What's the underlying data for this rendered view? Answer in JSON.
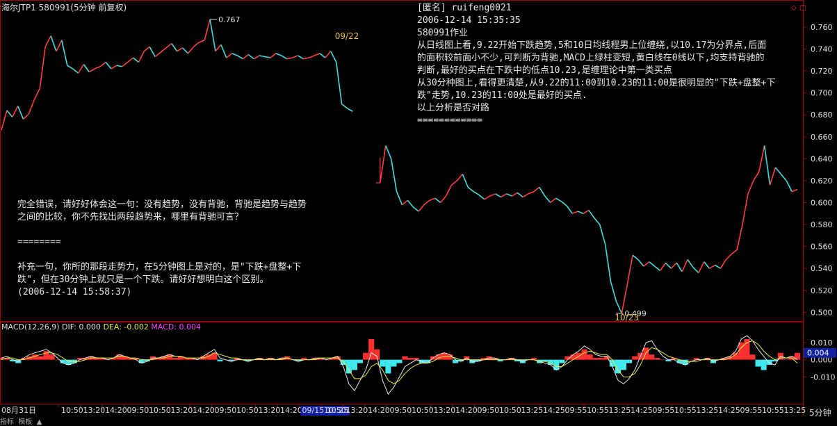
{
  "window": {
    "title": "海尔JTP1 580991(5分钟 前复权)",
    "timeframe_label": "5分钟",
    "bottom_status": "指标  模板  ▲"
  },
  "post": {
    "lines": [
      "[匿名] ruifeng0021",
      "2006-12-14 15:35:35",
      "580991作业",
      "从日线图上看,9.22开始下跌趋势,5和10日均线程男上位缠绕,以10.17为分界点,后面",
      "的面积较前面小不少,可判断为背驰,MACD上绿柱变短,黄白线在0线以下,均支持背驰的",
      "判断,最好的买点在下跌中的低点10.23,是缠理论中第一类买点",
      "从30分种图上,看得更清楚,从9.22的11:00到10.23的11:00是很明显的\"下跌+盘整+下",
      "跌\"走势,10.23的11:00处是最好的买点.",
      "以上分析是否对路",
      "============"
    ]
  },
  "reply": {
    "lines": [
      "完全错误，请好好体会这一句：没有趋势，没有背驰，背驰是趋势与趋势",
      "之间的比较，你不先找出两段趋势来，哪里有背驰可言？",
      "",
      "========",
      "",
      "补充一句，你所的那段走势力，在5分钟图上是对的，是\"下跌+盘整+下",
      "跌\"，但在30分钟上就只是一个下跌。请好好想明白这个区别。",
      "(2006-12-14 15:58:37)"
    ]
  },
  "chart_data": {
    "type": "line",
    "price_panel": {
      "ylim": [
        0.492,
        0.772
      ],
      "yticks": [
        "0.760",
        "0.740",
        "0.720",
        "0.700",
        "0.680",
        "0.660",
        "0.640",
        "0.620",
        "0.600",
        "0.580",
        "0.560",
        "0.540",
        "0.520",
        "0.500"
      ],
      "series": {
        "values": [
          0.666,
          0.684,
          0.678,
          0.688,
          0.676,
          0.681,
          0.694,
          0.704,
          0.742,
          0.752,
          0.738,
          0.748,
          0.725,
          0.722,
          0.718,
          0.726,
          0.719,
          0.722,
          0.724,
          0.728,
          0.722,
          0.725,
          0.724,
          0.728,
          0.732,
          0.728,
          0.738,
          0.742,
          0.733,
          0.737,
          0.741,
          0.745,
          0.738,
          0.741,
          0.736,
          0.742,
          0.746,
          0.748,
          0.767,
          0.738,
          0.744,
          0.732,
          0.736,
          0.734,
          0.731,
          0.735,
          0.731,
          0.734,
          0.733,
          0.732,
          0.736,
          0.734,
          0.731,
          0.732,
          0.734,
          0.731,
          0.732,
          0.734,
          0.736,
          0.732,
          0.738,
          0.728,
          0.69,
          0.686,
          0.683,
          null,
          null,
          null,
          null,
          0.618,
          0.652,
          0.64,
          0.61,
          0.598,
          0.602,
          0.596,
          0.592,
          0.598,
          0.602,
          0.604,
          0.6,
          0.606,
          0.616,
          0.62,
          0.626,
          0.614,
          0.61,
          0.607,
          0.603,
          0.606,
          0.608,
          0.605,
          0.608,
          0.606,
          0.609,
          0.605,
          0.608,
          0.61,
          0.614,
          0.606,
          0.6,
          0.604,
          0.601,
          0.597,
          0.59,
          0.592,
          0.59,
          0.593,
          0.586,
          0.58,
          0.562,
          0.528,
          0.51,
          0.499,
          0.525,
          0.552,
          0.548,
          0.542,
          0.546,
          0.542,
          0.538,
          0.545,
          0.54,
          0.545,
          0.537,
          0.548,
          0.541,
          0.536,
          0.546,
          0.54,
          0.543,
          0.54,
          0.548,
          0.553,
          0.557,
          0.58,
          0.608,
          0.62,
          0.628,
          0.652,
          0.616,
          0.632,
          0.626,
          0.62,
          0.61,
          0.612
        ]
      },
      "annotations": [
        {
          "x": 38,
          "y": 0.767,
          "label": "0.767",
          "color": "#e0e0e0"
        },
        {
          "x": 112,
          "y": 0.499,
          "label": "0.499",
          "color": "#e0e0e0"
        },
        {
          "x": 61,
          "y": 0.745,
          "label": "09/22",
          "color": "#e8c040"
        },
        {
          "x": 112,
          "y": 0.496,
          "label": "10/23",
          "color": "#e8c040"
        }
      ]
    },
    "macd_panel": {
      "legend": {
        "name": "MACD(12,26,9)",
        "dif_label": "DIF: 0.000",
        "dea_label": "DEA: -0.002",
        "macd_label": "MACD: 0.004"
      },
      "ylim": [
        -0.024,
        0.016
      ],
      "yticks": [
        "0.010",
        "0.000",
        "-0.010"
      ],
      "current_value_label": "0.004",
      "histogram": [
        0.001,
        0.001,
        -0.001,
        -0.002,
        0.001,
        0.002,
        0.003,
        0.002,
        0.005,
        0.003,
        0.0,
        -0.002,
        -0.003,
        -0.002,
        0.001,
        0.001,
        0.002,
        0.001,
        0.001,
        0.0,
        0.001,
        0.003,
        0.002,
        0.001,
        0.001,
        -0.002,
        -0.001,
        0.002,
        0.001,
        0.002,
        0.003,
        0.001,
        0.002,
        0.001,
        0.001,
        0.0,
        0.002,
        0.003,
        0.004,
        -0.001,
        0.0,
        -0.001,
        0.001,
        0.0,
        -0.001,
        0.0,
        0.001,
        0.0,
        0.001,
        0.0,
        0.001,
        0.002,
        0.0,
        -0.001,
        0.001,
        0.0,
        0.001,
        0.001,
        0.0,
        0.001,
        0.002,
        -0.003,
        -0.008,
        -0.006,
        -0.002,
        0.004,
        0.012,
        0.006,
        -0.004,
        -0.008,
        -0.004,
        -0.002,
        0.002,
        0.001,
        0.001,
        -0.002,
        -0.002,
        0.002,
        0.003,
        0.004,
        0.003,
        -0.002,
        -0.001,
        0.002,
        -0.002,
        -0.001,
        0.001,
        0.002,
        0.001,
        -0.001,
        0.0,
        0.001,
        -0.001,
        -0.002,
        0.0,
        0.001,
        -0.002,
        -0.001,
        -0.003,
        -0.006,
        -0.002,
        0.002,
        0.003,
        0.004,
        0.006,
        0.003,
        0.001,
        0.001,
        0.002,
        -0.004,
        -0.008,
        -0.006,
        -0.002,
        0.002,
        0.004,
        0.007,
        0.003,
        0.001,
        0.0,
        -0.001,
        0.001,
        -0.002,
        -0.003,
        0.0,
        0.001,
        0.0,
        0.001,
        -0.002,
        0.0,
        0.001,
        0.002,
        0.004,
        0.01,
        0.012,
        0.003,
        -0.004,
        -0.006,
        -0.003,
        -0.001,
        0.004,
        0.0,
        0.002,
        0.004
      ],
      "dif": [
        0.001,
        0.002,
        0.0,
        -0.001,
        0.001,
        0.003,
        0.004,
        0.005,
        0.006,
        0.004,
        0.001,
        -0.002,
        -0.003,
        -0.002,
        0.0,
        0.001,
        0.002,
        0.001,
        0.001,
        0.0,
        0.001,
        0.003,
        0.002,
        0.001,
        0.0,
        -0.002,
        -0.001,
        0.001,
        0.001,
        0.002,
        0.003,
        0.002,
        0.002,
        0.001,
        0.001,
        0.0,
        0.002,
        0.004,
        0.006,
        0.001,
        0.0,
        -0.001,
        0.0,
        0.0,
        -0.001,
        0.0,
        0.001,
        0.0,
        0.001,
        0.0,
        0.001,
        0.001,
        0.0,
        -0.001,
        0.0,
        0.0,
        0.001,
        0.001,
        0.0,
        0.001,
        0.002,
        -0.004,
        -0.014,
        -0.018,
        -0.012,
        -0.006,
        0.004,
        0.002,
        -0.012,
        -0.02,
        -0.016,
        -0.01,
        -0.004,
        -0.002,
        0.0,
        -0.001,
        -0.002,
        0.001,
        0.003,
        0.004,
        0.003,
        0.0,
        -0.001,
        0.001,
        -0.001,
        -0.001,
        0.0,
        0.001,
        0.001,
        0.0,
        0.0,
        0.001,
        0.0,
        -0.001,
        0.0,
        0.0,
        -0.001,
        -0.002,
        -0.003,
        -0.006,
        -0.004,
        0.0,
        0.003,
        0.005,
        0.008,
        0.006,
        0.003,
        0.002,
        0.002,
        -0.004,
        -0.012,
        -0.014,
        -0.011,
        -0.006,
        0.002,
        0.01,
        0.011,
        0.006,
        0.002,
        0.0,
        0.0,
        -0.002,
        -0.003,
        -0.001,
        0.0,
        0.0,
        0.001,
        -0.001,
        0.0,
        0.001,
        0.002,
        0.005,
        0.012,
        0.014,
        0.011,
        0.006,
        0.002,
        -0.002,
        -0.003,
        0.002,
        0.001,
        0.002,
        0.0
      ],
      "dea": [
        0.0,
        0.001,
        0.001,
        0.0,
        0.0,
        0.001,
        0.002,
        0.003,
        0.004,
        0.004,
        0.003,
        0.001,
        -0.001,
        -0.001,
        -0.001,
        0.0,
        0.001,
        0.001,
        0.001,
        0.001,
        0.001,
        0.002,
        0.002,
        0.001,
        0.001,
        0.0,
        0.0,
        0.0,
        0.001,
        0.001,
        0.002,
        0.002,
        0.002,
        0.001,
        0.001,
        0.001,
        0.001,
        0.002,
        0.004,
        0.003,
        0.002,
        0.001,
        0.001,
        0.0,
        0.0,
        0.0,
        0.0,
        0.0,
        0.0,
        0.0,
        0.0,
        0.001,
        0.0,
        0.0,
        0.0,
        0.0,
        0.0,
        0.001,
        0.001,
        0.001,
        0.001,
        -0.001,
        -0.006,
        -0.011,
        -0.011,
        -0.009,
        -0.004,
        -0.002,
        -0.006,
        -0.012,
        -0.014,
        -0.012,
        -0.008,
        -0.005,
        -0.003,
        -0.002,
        -0.002,
        -0.001,
        0.001,
        0.002,
        0.002,
        0.001,
        0.0,
        0.0,
        0.0,
        0.0,
        0.0,
        0.0,
        0.0,
        0.0,
        0.0,
        0.0,
        0.0,
        0.0,
        0.0,
        0.0,
        -0.001,
        -0.001,
        -0.002,
        -0.004,
        -0.004,
        -0.002,
        0.0,
        0.002,
        0.004,
        0.005,
        0.004,
        0.003,
        0.003,
        0.0,
        -0.006,
        -0.01,
        -0.01,
        -0.008,
        -0.003,
        0.004,
        0.007,
        0.006,
        0.004,
        0.002,
        0.001,
        0.0,
        -0.001,
        -0.001,
        -0.001,
        0.0,
        0.0,
        0.0,
        0.0,
        0.0,
        0.001,
        0.003,
        0.007,
        0.01,
        0.011,
        0.009,
        0.005,
        0.002,
        0.0,
        0.001,
        0.001,
        0.001,
        -0.002
      ]
    },
    "x_axis": {
      "first_label": "08月31日",
      "tick_labels": [
        "10:50",
        "13:20",
        "14:20",
        "09:50",
        "10:50",
        "13:20",
        "14:20",
        "09:50",
        "10:50",
        "13:20",
        "14:20",
        "09/15 10:25",
        "10:50",
        "13:20",
        "14:20",
        "09:50",
        "10:50",
        "13:20",
        "14:20",
        "09:50",
        "10:50",
        "13:25",
        "14:25",
        "09:55",
        "10:55",
        "13:25",
        "14:25",
        "09:55",
        "10:55",
        "13:25",
        "14:25",
        "09:55",
        "10:55",
        "13:25"
      ],
      "highlighted_label": "09/15 10:25"
    }
  }
}
